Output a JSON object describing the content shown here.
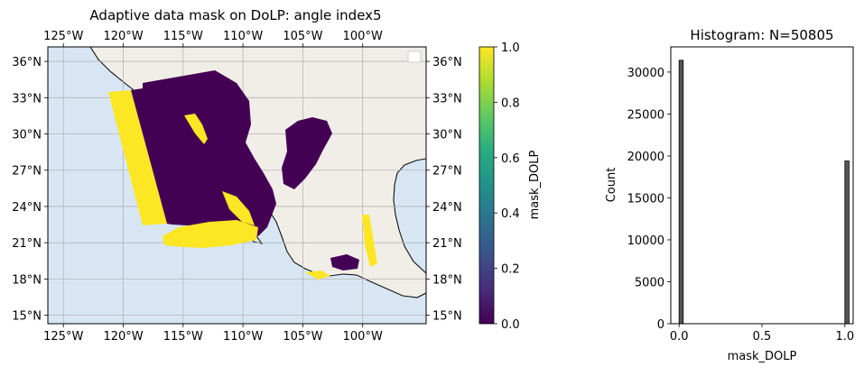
{
  "chart_data": [
    {
      "type": "heatmap",
      "title": "Adaptive data mask on DoLP: angle index5",
      "x_ticks": [
        "125°W",
        "120°W",
        "115°W",
        "110°W",
        "105°W",
        "100°W"
      ],
      "x_tick_values": [
        -125,
        -120,
        -115,
        -110,
        -105,
        -100
      ],
      "y_ticks": [
        "36°N",
        "33°N",
        "30°N",
        "27°N",
        "24°N",
        "21°N",
        "18°N",
        "15°N"
      ],
      "y_tick_values": [
        36,
        33,
        30,
        27,
        24,
        21,
        18,
        15
      ],
      "xlim": [
        -126.3,
        -94.7
      ],
      "ylim": [
        14.3,
        37.2
      ],
      "grid": true,
      "legend": "top-right (empty)",
      "colors": {
        "ocean": "#d8e6f4",
        "land": "#f1eee8",
        "grid": "#b5b5b5",
        "mask_0": "#440154",
        "mask_1": "#fde725"
      },
      "colorbar": {
        "label": "mask_DOLP",
        "ticks": [
          "0.0",
          "0.2",
          "0.4",
          "0.6",
          "0.8",
          "1.0"
        ],
        "tick_values": [
          0.0,
          0.2,
          0.4,
          0.6,
          0.8,
          1.0
        ],
        "range": [
          0.0,
          1.0
        ]
      }
    },
    {
      "type": "bar",
      "title": "Histogram: N=50805",
      "xlabel": "mask_DOLP",
      "ylabel": "Count",
      "x_ticks": [
        "0.0",
        "0.5",
        "1.0"
      ],
      "x_tick_values": [
        0.0,
        0.5,
        1.0
      ],
      "y_ticks": [
        "0",
        "5000",
        "10000",
        "15000",
        "20000",
        "25000",
        "30000"
      ],
      "y_tick_values": [
        0,
        5000,
        10000,
        15000,
        20000,
        25000,
        30000
      ],
      "xlim": [
        -0.05,
        1.05
      ],
      "ylim": [
        0,
        33000
      ],
      "bins": [
        {
          "x": 0.0,
          "count": 31400
        },
        {
          "x": 1.0,
          "count": 19400
        }
      ],
      "bar_color": "#555555"
    }
  ]
}
